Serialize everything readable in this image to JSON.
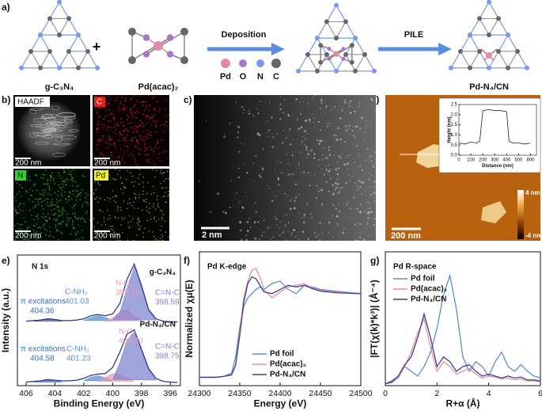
{
  "panel_labels": [
    "a)",
    "b)",
    "c)",
    "d)",
    "e)",
    "f)",
    "g)"
  ],
  "scheme": {
    "reactant1": "g-C₃N₄",
    "plus": "+",
    "reactant2": "Pd(acac)₂",
    "step1": "Deposition",
    "step2": "PILE",
    "product": "Pd-N₄/CN",
    "legend": [
      "Pd",
      "O",
      "N",
      "C"
    ]
  },
  "micrographs": {
    "b": {
      "channels": [
        "HAADF",
        "C",
        "N",
        "Pd"
      ],
      "scale_bars": [
        "200 nm",
        "200 nm",
        "200 nm",
        "200 nm"
      ]
    },
    "c": {
      "scale_bar": "2 nm"
    },
    "d": {
      "scale_bar": "200 nm",
      "colorbar_max": "4 nm",
      "colorbar_min": "-4 nm"
    }
  },
  "chart_data": [
    {
      "type": "line",
      "title": "N 1s",
      "xlabel": "Binding Energy (eV)",
      "ylabel": "Intensity (a.u.)",
      "xlim": [
        406.6,
        395.3
      ],
      "xticks": [
        406,
        404,
        402,
        400,
        398,
        396
      ],
      "ylim": [
        0,
        2.15
      ],
      "label_series": true,
      "x": [
        406,
        405.5,
        405,
        404.5,
        404,
        403.5,
        403,
        402.5,
        402,
        401.5,
        401,
        400.5,
        400,
        399.5,
        399,
        398.5,
        398,
        397.5,
        397,
        396.5,
        396,
        395.5
      ],
      "series": [
        {
          "name": "g-C₃N₄",
          "color": "#2e3a87",
          "values": [
            1.06,
            1.07,
            1.08,
            1.1,
            1.09,
            1.07,
            1.07,
            1.08,
            1.1,
            1.15,
            1.17,
            1.15,
            1.18,
            1.35,
            1.75,
            2.0,
            1.65,
            1.25,
            1.1,
            1.06,
            1.05,
            1.05
          ]
        },
        {
          "name": "π excitations",
          "peak": "404.36",
          "color": "#3f6fb5",
          "fill": true,
          "values": [
            null,
            1.06,
            1.08,
            1.09,
            1.08,
            1.06,
            null,
            null,
            null,
            null,
            null,
            null,
            null,
            null,
            null,
            null,
            null,
            null,
            null,
            null,
            null,
            null
          ]
        },
        {
          "name": "C-NH₂",
          "peak": "401.03",
          "color": "#5b8fd0",
          "fill": true,
          "values": [
            null,
            null,
            null,
            null,
            null,
            null,
            null,
            null,
            1.07,
            1.12,
            1.15,
            1.12,
            1.07,
            null,
            null,
            null,
            null,
            null,
            null,
            null,
            null,
            null
          ]
        },
        {
          "name": "N-C₃",
          "peak": "399.19",
          "color": "#ee9ab8",
          "fill": true,
          "values": [
            null,
            null,
            null,
            null,
            null,
            null,
            null,
            null,
            null,
            null,
            null,
            1.06,
            1.12,
            1.22,
            1.25,
            1.15,
            1.07,
            null,
            null,
            null,
            null,
            null
          ]
        },
        {
          "name": "C=N-C",
          "peak": "398.59",
          "color": "#7f86cf",
          "fill": true,
          "values": [
            null,
            null,
            null,
            null,
            null,
            null,
            null,
            null,
            null,
            null,
            null,
            null,
            1.08,
            1.2,
            1.6,
            1.95,
            1.62,
            1.23,
            1.08,
            null,
            null,
            null
          ]
        },
        {
          "name": "Pd-N₄/CN",
          "color": "#2e3a87",
          "values": [
            0.06,
            0.07,
            0.08,
            0.1,
            0.09,
            0.08,
            0.08,
            0.09,
            0.12,
            0.17,
            0.19,
            0.2,
            0.3,
            0.55,
            0.85,
            0.92,
            0.6,
            0.28,
            0.12,
            0.07,
            0.06,
            0.05
          ]
        },
        {
          "name": "π excitations",
          "peak": "404.58",
          "color": "#3f6fb5",
          "fill": true,
          "values": [
            null,
            0.06,
            0.08,
            0.09,
            0.08,
            0.06,
            null,
            null,
            null,
            null,
            null,
            null,
            null,
            null,
            null,
            null,
            null,
            null,
            null,
            null,
            null,
            null
          ]
        },
        {
          "name": "C-NH₂",
          "peak": "401.23",
          "color": "#5b8fd0",
          "fill": true,
          "values": [
            null,
            null,
            null,
            null,
            null,
            null,
            null,
            null,
            0.08,
            0.14,
            0.16,
            0.13,
            0.08,
            null,
            null,
            null,
            null,
            null,
            null,
            null,
            null,
            null
          ]
        },
        {
          "name": "N-C₃",
          "peak": "400.30",
          "color": "#ee9ab8",
          "fill": true,
          "values": [
            null,
            null,
            null,
            null,
            null,
            null,
            null,
            null,
            null,
            null,
            0.07,
            0.14,
            0.2,
            0.18,
            0.12,
            0.07,
            null,
            null,
            null,
            null,
            null,
            null
          ]
        },
        {
          "name": "C=N-C",
          "peak": "398.75",
          "color": "#7f86cf",
          "fill": true,
          "values": [
            null,
            null,
            null,
            null,
            null,
            null,
            null,
            null,
            null,
            null,
            null,
            null,
            0.1,
            0.38,
            0.75,
            0.88,
            0.58,
            0.26,
            0.09,
            null,
            null,
            null
          ]
        }
      ]
    },
    {
      "type": "line",
      "title": "Pd K-edge",
      "xlabel": "Energy (eV)",
      "ylabel": "Normalized χμ(E)",
      "xlim": [
        24300,
        24500
      ],
      "xticks": [
        24300,
        24350,
        24400,
        24450,
        24500
      ],
      "ylim": [
        -0.1,
        1.5
      ],
      "legend": "lower center",
      "x": [
        24300,
        24320,
        24330,
        24340,
        24345,
        24350,
        24355,
        24360,
        24365,
        24370,
        24375,
        24380,
        24390,
        24400,
        24410,
        24420,
        24430,
        24440,
        24450,
        24470,
        24500
      ],
      "series": [
        {
          "name": "Pd foil",
          "color": "#5b8fc9",
          "values": [
            0,
            0,
            0.01,
            0.05,
            0.25,
            0.6,
            0.85,
            0.95,
            1.0,
            1.05,
            1.08,
            1.05,
            1.12,
            1.15,
            1.05,
            1.0,
            1.1,
            1.08,
            1.05,
            1.03,
            1.0
          ]
        },
        {
          "name": "Pd(acac)₂",
          "color": "#e58fa7",
          "values": [
            0,
            0,
            0.01,
            0.03,
            0.15,
            0.55,
            0.95,
            1.15,
            1.28,
            1.3,
            1.2,
            1.05,
            0.95,
            1.02,
            1.08,
            1.1,
            1.12,
            1.07,
            1.04,
            1.02,
            1.0
          ]
        },
        {
          "name": "Pd-N₄/CN",
          "color": "#3a3f8f",
          "values": [
            0,
            0,
            0.01,
            0.03,
            0.15,
            0.5,
            0.9,
            1.12,
            1.2,
            1.18,
            1.1,
            1.02,
            1.0,
            1.05,
            1.1,
            1.08,
            1.1,
            1.06,
            1.03,
            1.01,
            1.0
          ]
        }
      ]
    },
    {
      "type": "line",
      "title": "Pd R-space",
      "xlabel": "R+α (Å)",
      "ylabel": "|FT(χ(k)*k³)| (Å⁻⁴)",
      "xlim": [
        0,
        6
      ],
      "xticks": [
        0,
        2,
        4,
        6
      ],
      "ylim": [
        0,
        14
      ],
      "legend": "upper left",
      "x": [
        0,
        0.25,
        0.5,
        0.75,
        1.0,
        1.25,
        1.5,
        1.75,
        2.0,
        2.25,
        2.5,
        2.75,
        3.0,
        3.25,
        3.5,
        3.75,
        4.0,
        4.25,
        4.5,
        4.75,
        5.0,
        5.25,
        5.5,
        5.75,
        6.0
      ],
      "series": [
        {
          "name": "Pd foil",
          "color": "#5b8fc9",
          "values": [
            0.2,
            0.5,
            1.0,
            2.0,
            1.5,
            1.0,
            2.0,
            3.5,
            6.0,
            9.5,
            11.5,
            8.0,
            3.0,
            1.5,
            2.5,
            2.0,
            1.0,
            2.5,
            3.5,
            2.0,
            1.5,
            2.2,
            1.5,
            1.0,
            0.8
          ]
        },
        {
          "name": "Pd(acac)₂",
          "color": "#e58fa7",
          "values": [
            0.2,
            0.3,
            0.8,
            2.0,
            3.5,
            5.5,
            7.0,
            4.0,
            1.5,
            2.5,
            2.0,
            1.2,
            1.5,
            1.8,
            1.2,
            0.8,
            1.0,
            0.9,
            0.7,
            0.8,
            0.6,
            0.7,
            0.5,
            0.5,
            0.4
          ]
        },
        {
          "name": "Pd-N₄/CN",
          "color": "#3a3f8f",
          "values": [
            0.2,
            0.4,
            1.0,
            2.2,
            3.0,
            5.0,
            7.5,
            5.0,
            2.0,
            3.0,
            2.5,
            1.5,
            2.0,
            2.2,
            1.5,
            1.0,
            1.2,
            1.0,
            0.8,
            1.0,
            0.8,
            0.9,
            0.6,
            0.6,
            0.5
          ]
        }
      ]
    },
    {
      "type": "line",
      "xlabel": "Distance (nm)",
      "ylabel": "Height (nm)",
      "xlim": [
        0,
        650
      ],
      "xticks": [
        0,
        100,
        200,
        300,
        400,
        500,
        600
      ],
      "ylim": [
        0,
        2.5
      ],
      "yticks": [
        {
          "value": 0,
          "label": "0.0"
        },
        {
          "value": 0.5,
          "label": "0.5"
        },
        {
          "value": 1.0,
          "label": "1.0"
        },
        {
          "value": 1.5,
          "label": "1.5"
        },
        {
          "value": 2.0,
          "label": "2.0"
        },
        {
          "value": 2.5,
          "label": "2.5"
        }
      ],
      "x": [
        0,
        50,
        100,
        150,
        175,
        200,
        250,
        300,
        350,
        400,
        420,
        450,
        500,
        550,
        600
      ],
      "series": [
        {
          "color": "#222222",
          "values": [
            0.6,
            0.55,
            0.65,
            0.6,
            0.7,
            2.2,
            2.25,
            2.2,
            2.2,
            2.15,
            0.7,
            0.6,
            0.6,
            0.55,
            0.6
          ]
        }
      ]
    }
  ]
}
